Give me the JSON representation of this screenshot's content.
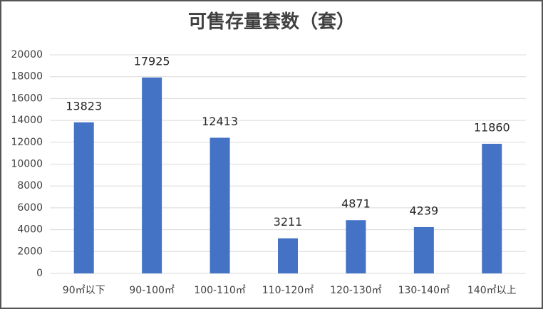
{
  "chart_data": {
    "type": "bar",
    "title": "可售存量套数（套）",
    "categories": [
      "90㎡以下",
      "90-100㎡",
      "100-110㎡",
      "110-120㎡",
      "120-130㎡",
      "130-140㎡",
      "140㎡以上"
    ],
    "values": [
      13823,
      17925,
      12413,
      3211,
      4871,
      4239,
      11860
    ],
    "color": "#4472c4",
    "ylim": [
      0,
      20000
    ],
    "yticks": [
      0,
      2000,
      4000,
      6000,
      8000,
      10000,
      12000,
      14000,
      16000,
      18000,
      20000
    ],
    "grid": true
  }
}
